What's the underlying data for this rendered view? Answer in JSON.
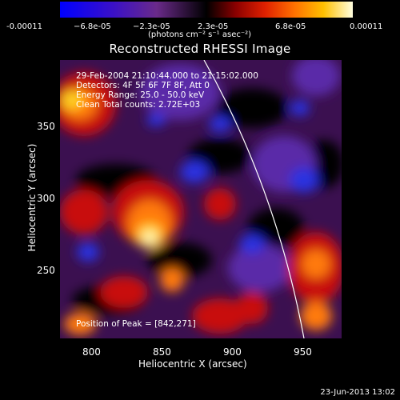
{
  "colorbar": {
    "ticks": [
      "-0.00011",
      "−6.8e-05",
      "−2.3e-05",
      "2.3e-05",
      "6.8e-05",
      "0.00011"
    ],
    "units": "(photons cm⁻² s⁻¹ asec⁻²)"
  },
  "title": "Reconstructed RHESSI Image",
  "info": {
    "time": "29-Feb-2004 21:10:44.000 to 21:15:02.000",
    "detectors": "Detectors: 4F 5F 6F 7F 8F, Att 0",
    "energy": "Energy Range: 25.0 - 50.0 keV",
    "clean": "Clean     Total counts: 2.72E+03",
    "peak": "Position of Peak = [842,271]"
  },
  "axes": {
    "xlabel": "Heliocentric X (arcsec)",
    "ylabel": "Heliocentric Y (arcsec)",
    "xticks": [
      "800",
      "850",
      "900",
      "950"
    ],
    "yticks": [
      "350",
      "300",
      "250"
    ]
  },
  "footer": {
    "date": "23-Jun-2013 13:02"
  }
}
